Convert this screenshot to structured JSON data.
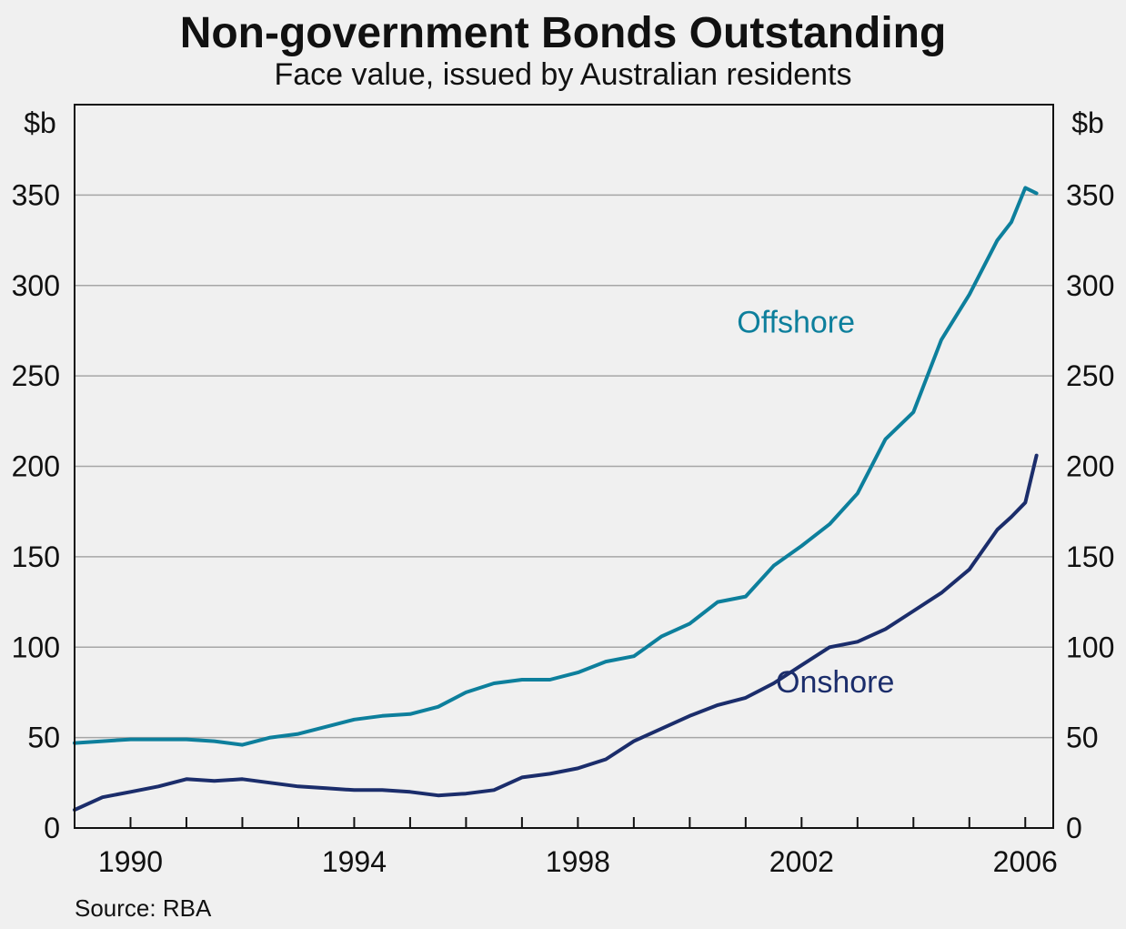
{
  "colors": {
    "background": "#f0f0f0",
    "offshore": "#0d7f9c",
    "onshore": "#1b2d6b",
    "grid": "#a6a6a6",
    "axis": "#111111"
  },
  "chart_data": {
    "type": "line",
    "title": "Non-government Bonds Outstanding",
    "subtitle": "Face value, issued by Australian residents",
    "ylabel_left": "$b",
    "ylabel_right": "$b",
    "source": "Source: RBA",
    "ylim": [
      0,
      400
    ],
    "xlim": [
      1989.0,
      2006.5
    ],
    "yticks": [
      0,
      50,
      100,
      150,
      200,
      250,
      300,
      350
    ],
    "ytick_labels": [
      "0",
      "50",
      "100",
      "150",
      "200",
      "250",
      "300",
      "350"
    ],
    "xticks": [
      1990,
      1994,
      1998,
      2002,
      2006
    ],
    "xtick_labels": [
      "1990",
      "1994",
      "1998",
      "2002",
      "2006"
    ],
    "grid": true,
    "series": [
      {
        "name": "Offshore",
        "x": [
          1989.0,
          1989.5,
          1990.0,
          1990.5,
          1991.0,
          1991.5,
          1992.0,
          1992.5,
          1993.0,
          1993.5,
          1994.0,
          1994.5,
          1995.0,
          1995.5,
          1996.0,
          1996.5,
          1997.0,
          1997.5,
          1998.0,
          1998.5,
          1999.0,
          1999.5,
          2000.0,
          2000.5,
          2001.0,
          2001.5,
          2002.0,
          2002.5,
          2003.0,
          2003.5,
          2004.0,
          2004.5,
          2005.0,
          2005.5,
          2005.75,
          2006.0,
          2006.2
        ],
        "values": [
          47,
          48,
          49,
          49,
          49,
          48,
          46,
          50,
          52,
          56,
          60,
          62,
          63,
          67,
          75,
          80,
          82,
          82,
          86,
          92,
          95,
          106,
          113,
          125,
          128,
          145,
          156,
          168,
          185,
          215,
          230,
          270,
          295,
          325,
          335,
          354,
          351
        ]
      },
      {
        "name": "Onshore",
        "x": [
          1989.0,
          1989.5,
          1990.0,
          1990.5,
          1991.0,
          1991.5,
          1992.0,
          1992.5,
          1993.0,
          1993.5,
          1994.0,
          1994.5,
          1995.0,
          1995.5,
          1996.0,
          1996.5,
          1997.0,
          1997.5,
          1998.0,
          1998.5,
          1999.0,
          1999.5,
          2000.0,
          2000.5,
          2001.0,
          2001.5,
          2002.0,
          2002.5,
          2003.0,
          2003.5,
          2004.0,
          2004.5,
          2005.0,
          2005.5,
          2005.75,
          2006.0,
          2006.2
        ],
        "values": [
          10,
          17,
          20,
          23,
          27,
          26,
          27,
          25,
          23,
          22,
          21,
          21,
          20,
          18,
          19,
          21,
          28,
          30,
          33,
          38,
          48,
          55,
          62,
          68,
          72,
          80,
          90,
          100,
          103,
          110,
          120,
          130,
          143,
          165,
          172,
          180,
          206
        ]
      }
    ],
    "annotations": [
      {
        "text": "Offshore",
        "series": "Offshore",
        "x": 2001.9,
        "y": 274
      },
      {
        "text": "Onshore",
        "series": "Onshore",
        "x": 2002.6,
        "y": 75
      }
    ]
  }
}
